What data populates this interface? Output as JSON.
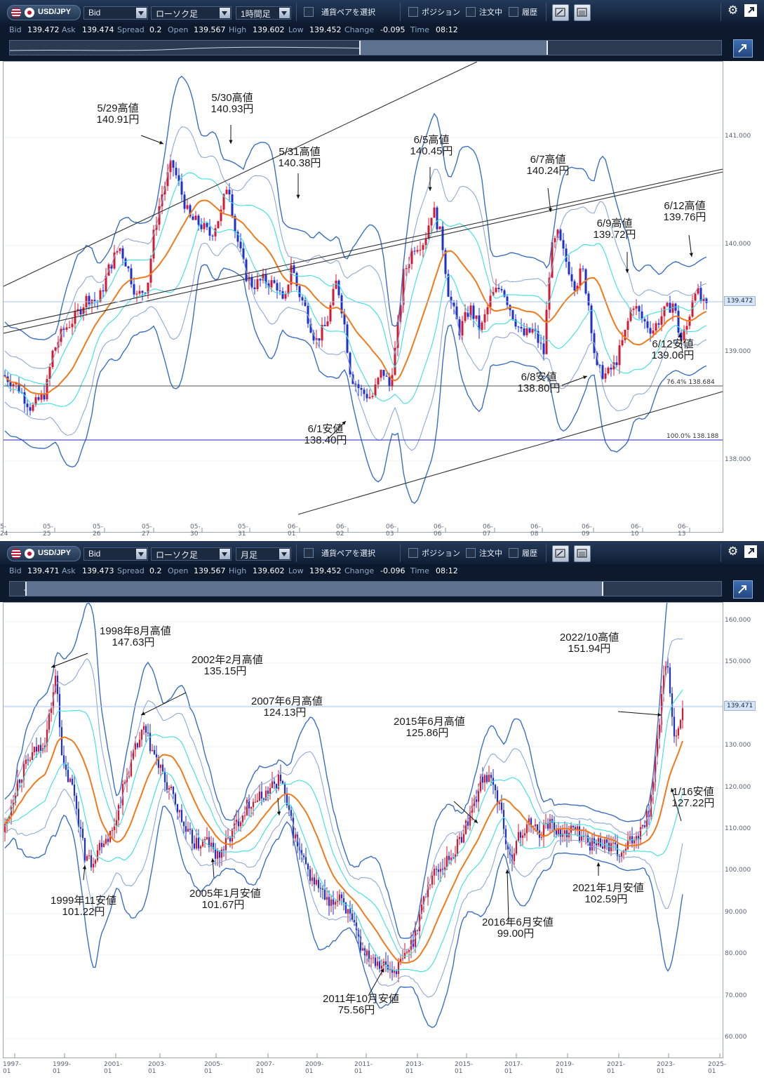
{
  "panels": [
    {
      "toolbar": {
        "pair": "USD/JPY",
        "price_type": "Bid",
        "chart_type": "ローソク足",
        "timeframe": "1時間足",
        "select_pair": "通貨ペアを選択",
        "positions": "ポジション",
        "orders": "注文中",
        "history": "履歴"
      },
      "info": {
        "bid_label": "Bid",
        "bid": "139.472",
        "ask_label": "Ask",
        "ask": "139.474",
        "spread_label": "Spread",
        "spread": "0.2",
        "open_label": "Open",
        "open": "139.567",
        "high_label": "High",
        "high": "139.602",
        "low_label": "Low",
        "low": "139.452",
        "change_label": "Change",
        "change": "-0.095",
        "time_label": "Time",
        "time": "08:12"
      },
      "chart_data": {
        "type": "candlestick",
        "x_ticks": [
          "5-24",
          "05-25",
          "05-26",
          "05-27",
          "05-30",
          "05-31",
          "06-01",
          "06-02",
          "06-03",
          "06-06",
          "06-07",
          "06-08",
          "06-09",
          "06-10",
          "06-13"
        ],
        "y_ticks": [
          "141.000",
          "140.000",
          "139.000",
          "138.000"
        ],
        "ylim": [
          137.5,
          141.7
        ],
        "current_price": "139.472",
        "fib_levels": [
          {
            "label": "76.4%",
            "value": "138.684"
          },
          {
            "label": "100.0%",
            "value": "138.188"
          }
        ],
        "annotations": [
          {
            "title": "5/29高値",
            "price": "140.91円"
          },
          {
            "title": "5/30高値",
            "price": "140.93円"
          },
          {
            "title": "5/31高値",
            "price": "140.38円"
          },
          {
            "title": "6/1安値",
            "price": "138.40円"
          },
          {
            "title": "6/5高値",
            "price": "140.45円"
          },
          {
            "title": "6/7高値",
            "price": "140.24円"
          },
          {
            "title": "6/8安値",
            "price": "138.80円"
          },
          {
            "title": "6/9高値",
            "price": "139.72円"
          },
          {
            "title": "6/12高値",
            "price": "139.76円"
          },
          {
            "title": "6/12安値",
            "price": "139.06円"
          }
        ],
        "close_path": [
          [
            0,
            138.9
          ],
          [
            20,
            138.8
          ],
          [
            40,
            138.6
          ],
          [
            60,
            138.75
          ],
          [
            70,
            139.1
          ],
          [
            85,
            139.3
          ],
          [
            100,
            139.4
          ],
          [
            120,
            139.6
          ],
          [
            135,
            139.55
          ],
          [
            150,
            139.85
          ],
          [
            165,
            140.05
          ],
          [
            175,
            139.9
          ],
          [
            190,
            139.6
          ],
          [
            205,
            139.7
          ],
          [
            215,
            140.2
          ],
          [
            225,
            140.5
          ],
          [
            240,
            140.8
          ],
          [
            250,
            140.6
          ],
          [
            265,
            140.3
          ],
          [
            280,
            140.25
          ],
          [
            295,
            140.15
          ],
          [
            310,
            140.35
          ],
          [
            320,
            140.65
          ],
          [
            330,
            140.2
          ],
          [
            345,
            139.8
          ],
          [
            355,
            139.7
          ],
          [
            370,
            139.75
          ],
          [
            390,
            139.7
          ],
          [
            400,
            139.5
          ],
          [
            410,
            139.9
          ],
          [
            420,
            139.65
          ],
          [
            430,
            139.5
          ],
          [
            445,
            139.2
          ],
          [
            460,
            139.35
          ],
          [
            475,
            139.75
          ],
          [
            485,
            139.4
          ],
          [
            495,
            138.9
          ],
          [
            510,
            138.75
          ],
          [
            525,
            138.7
          ],
          [
            540,
            138.95
          ],
          [
            550,
            138.8
          ],
          [
            560,
            139.2
          ],
          [
            570,
            139.8
          ],
          [
            585,
            140.05
          ],
          [
            600,
            140.1
          ],
          [
            612,
            140.4
          ],
          [
            625,
            140.1
          ],
          [
            635,
            139.6
          ],
          [
            650,
            139.3
          ],
          [
            665,
            139.5
          ],
          [
            680,
            139.3
          ],
          [
            695,
            139.6
          ],
          [
            710,
            139.7
          ],
          [
            725,
            139.45
          ],
          [
            740,
            139.25
          ],
          [
            755,
            139.3
          ],
          [
            770,
            139.1
          ],
          [
            780,
            140.0
          ],
          [
            790,
            140.15
          ],
          [
            800,
            139.95
          ],
          [
            815,
            139.7
          ],
          [
            825,
            139.85
          ],
          [
            835,
            139.5
          ],
          [
            845,
            138.95
          ],
          [
            860,
            138.9
          ],
          [
            872,
            139.0
          ],
          [
            885,
            139.25
          ],
          [
            897,
            139.55
          ],
          [
            910,
            139.4
          ],
          [
            925,
            139.3
          ],
          [
            940,
            139.45
          ],
          [
            955,
            139.55
          ],
          [
            965,
            139.2
          ],
          [
            975,
            139.35
          ],
          [
            985,
            139.7
          ],
          [
            995,
            139.55
          ],
          [
            1005,
            139.47
          ]
        ]
      }
    },
    {
      "toolbar": {
        "pair": "USD/JPY",
        "price_type": "Bid",
        "chart_type": "ローソク足",
        "timeframe": "月足",
        "select_pair": "通貨ペアを選択",
        "positions": "ポジション",
        "orders": "注文中",
        "history": "履歴"
      },
      "info": {
        "bid_label": "Bid",
        "bid": "139.471",
        "ask_label": "Ask",
        "ask": "139.473",
        "spread_label": "Spread",
        "spread": "0.2",
        "open_label": "Open",
        "open": "139.567",
        "high_label": "High",
        "high": "139.602",
        "low_label": "Low",
        "low": "139.452",
        "change_label": "Change",
        "change": "-0.096",
        "time_label": "Time",
        "time": "08:12"
      },
      "chart_data": {
        "type": "candlestick",
        "x_ticks": [
          "1997-01",
          "1999-01",
          "2001-01",
          "2003-01",
          "2005-01",
          "2007-01",
          "2009-01",
          "2011-01",
          "2013-01",
          "2015-01",
          "2017-01",
          "2019-01",
          "2021-01",
          "2023-01",
          "2025-01"
        ],
        "y_ticks": [
          "160.000",
          "150.000",
          "140.000",
          "130.000",
          "120.000",
          "110.000",
          "100.000",
          "90.000",
          "80.000",
          "70.000",
          "60.000"
        ],
        "ylim": [
          57,
          164
        ],
        "current_price": "139.471",
        "annotations": [
          {
            "title": "1998年8月高値",
            "price": "147.63円"
          },
          {
            "title": "1999年11安値",
            "price": "101.22円"
          },
          {
            "title": "2002年2月高値",
            "price": "135.15円"
          },
          {
            "title": "2005年1月安値",
            "price": "101.67円"
          },
          {
            "title": "2007年6月高値",
            "price": "124.13円"
          },
          {
            "title": "2011年10月安値",
            "price": "75.56円"
          },
          {
            "title": "2015年6月高値",
            "price": "125.86円"
          },
          {
            "title": "2016年6月安値",
            "price": "99.00円"
          },
          {
            "title": "2021年1月安値",
            "price": "102.59円"
          },
          {
            "title": "2022/10高値",
            "price": "151.94円"
          },
          {
            "title": "1/16安値",
            "price": "127.22円"
          }
        ],
        "close_path": [
          [
            0,
            110
          ],
          [
            20,
            122
          ],
          [
            40,
            128
          ],
          [
            60,
            132
          ],
          [
            75,
            147
          ],
          [
            85,
            125
          ],
          [
            100,
            120
          ],
          [
            115,
            105
          ],
          [
            125,
            103
          ],
          [
            140,
            108
          ],
          [
            155,
            110
          ],
          [
            170,
            120
          ],
          [
            185,
            128
          ],
          [
            200,
            134
          ],
          [
            215,
            128
          ],
          [
            230,
            122
          ],
          [
            245,
            117
          ],
          [
            260,
            110
          ],
          [
            275,
            107
          ],
          [
            290,
            108
          ],
          [
            305,
            104
          ],
          [
            320,
            108
          ],
          [
            335,
            113
          ],
          [
            350,
            117
          ],
          [
            365,
            118
          ],
          [
            380,
            120
          ],
          [
            395,
            123
          ],
          [
            405,
            115
          ],
          [
            420,
            106
          ],
          [
            435,
            100
          ],
          [
            450,
            97
          ],
          [
            465,
            92
          ],
          [
            480,
            96
          ],
          [
            495,
            89
          ],
          [
            510,
            83
          ],
          [
            525,
            81
          ],
          [
            540,
            79
          ],
          [
            555,
            77
          ],
          [
            570,
            80
          ],
          [
            585,
            85
          ],
          [
            595,
            92
          ],
          [
            610,
            100
          ],
          [
            625,
            102
          ],
          [
            645,
            106
          ],
          [
            660,
            112
          ],
          [
            675,
            119
          ],
          [
            685,
            124
          ],
          [
            700,
            120
          ],
          [
            710,
            115
          ],
          [
            720,
            103
          ],
          [
            735,
            109
          ],
          [
            750,
            112
          ],
          [
            765,
            110
          ],
          [
            780,
            113
          ],
          [
            795,
            109
          ],
          [
            810,
            111
          ],
          [
            825,
            109
          ],
          [
            840,
            107
          ],
          [
            855,
            108
          ],
          [
            870,
            106
          ],
          [
            880,
            104
          ],
          [
            890,
            107
          ],
          [
            905,
            110
          ],
          [
            920,
            115
          ],
          [
            930,
            128
          ],
          [
            940,
            145
          ],
          [
            947,
            150
          ],
          [
            955,
            133
          ],
          [
            962,
            135
          ],
          [
            970,
            139.5
          ]
        ]
      }
    }
  ]
}
